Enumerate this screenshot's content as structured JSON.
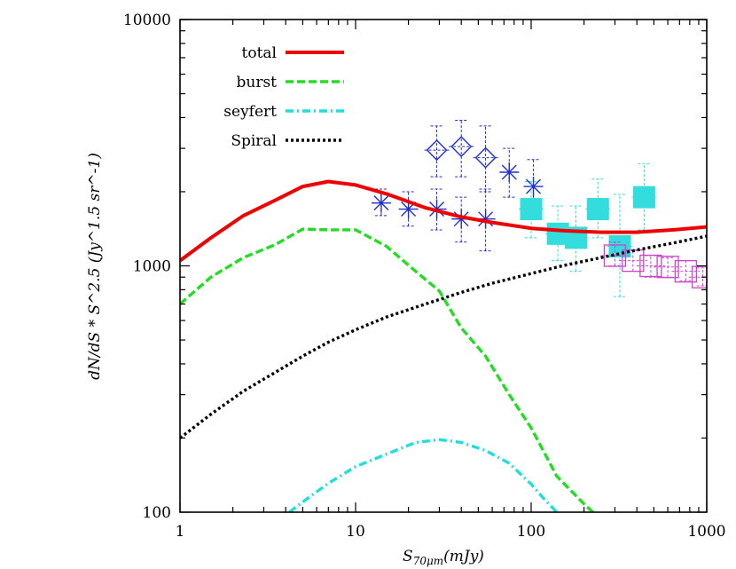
{
  "chart_data": {
    "type": "line",
    "xscale": "log",
    "yscale": "log",
    "xlim": [
      1,
      1000
    ],
    "ylim": [
      100,
      10000
    ],
    "xticks": [
      "1",
      "10",
      "100",
      "1000"
    ],
    "yticks": [
      "100",
      "1000",
      "10000"
    ],
    "xlabel": "S",
    "xlabel_sub": "70μm",
    "xlabel_unit": "(mJy)",
    "ylabel": "dN/dS * S^2.5 (Jy^1.5 sr^-1)",
    "grid": false,
    "legend_position": "top-left",
    "series": [
      {
        "name": "total",
        "color": "#ee0000",
        "style": "solid",
        "x": [
          1,
          1.5,
          2.3,
          3.5,
          5,
          7,
          10,
          15,
          25,
          40,
          60,
          100,
          150,
          250,
          400,
          650,
          1000
        ],
        "y": [
          1050,
          1300,
          1600,
          1850,
          2100,
          2200,
          2130,
          1960,
          1720,
          1580,
          1500,
          1420,
          1390,
          1370,
          1370,
          1400,
          1440
        ]
      },
      {
        "name": "burst",
        "color": "#22dd22",
        "style": "dashed",
        "x": [
          1,
          1.5,
          2.3,
          3.5,
          5,
          7,
          10,
          15,
          22,
          30,
          40,
          55,
          75,
          100,
          140,
          200,
          225
        ],
        "y": [
          700,
          900,
          1080,
          1220,
          1410,
          1400,
          1400,
          1200,
          950,
          790,
          560,
          430,
          300,
          220,
          140,
          108,
          100
        ]
      },
      {
        "name": "seyfert",
        "color": "#22dddd",
        "style": "dashdot",
        "x": [
          4.2,
          5,
          7,
          10,
          15,
          22,
          30,
          40,
          55,
          75,
          100,
          120,
          140
        ],
        "y": [
          100,
          110,
          131,
          153,
          172,
          192,
          197,
          192,
          178,
          158,
          130,
          112,
          100
        ]
      },
      {
        "name": "Spiral",
        "color": "#000000",
        "style": "dotted",
        "x": [
          1,
          1.5,
          2.3,
          3.5,
          5,
          7,
          10,
          15,
          25,
          40,
          60,
          100,
          150,
          250,
          400,
          650,
          1000
        ],
        "y": [
          200,
          250,
          310,
          370,
          430,
          490,
          550,
          620,
          700,
          780,
          850,
          930,
          1000,
          1080,
          1160,
          1240,
          1320
        ]
      }
    ],
    "observations": [
      {
        "marker": "asterisk",
        "color": "#1f2fcc",
        "points": [
          {
            "x": 14,
            "y": 1800,
            "ylo": 1600,
            "yhi": 2050
          },
          {
            "x": 20,
            "y": 1700,
            "ylo": 1450,
            "yhi": 2000
          },
          {
            "x": 29,
            "y": 1700,
            "ylo": 1400,
            "yhi": 2050
          },
          {
            "x": 40,
            "y": 1550,
            "ylo": 1250,
            "yhi": 1900
          },
          {
            "x": 55,
            "y": 1550,
            "ylo": 1150,
            "yhi": 2050
          },
          {
            "x": 75,
            "y": 2400,
            "ylo": 1900,
            "yhi": 3000
          },
          {
            "x": 103,
            "y": 2100,
            "ylo": 1600,
            "yhi": 2700
          }
        ]
      },
      {
        "marker": "diamond",
        "color": "#1f2fcc",
        "points": [
          {
            "x": 29,
            "y": 2950,
            "ylo": 2300,
            "yhi": 3700
          },
          {
            "x": 40,
            "y": 3050,
            "ylo": 2300,
            "yhi": 3900
          },
          {
            "x": 55,
            "y": 2750,
            "ylo": 2000,
            "yhi": 3700
          }
        ]
      },
      {
        "marker": "filled-square",
        "color": "#33dddd",
        "points": [
          {
            "x": 100,
            "y": 1700,
            "ylo": 1300,
            "yhi": 2200
          },
          {
            "x": 142,
            "y": 1350,
            "ylo": 1050,
            "yhi": 1750
          },
          {
            "x": 180,
            "y": 1300,
            "ylo": 950,
            "yhi": 1750
          },
          {
            "x": 240,
            "y": 1700,
            "ylo": 1300,
            "yhi": 2250
          },
          {
            "x": 320,
            "y": 1200,
            "ylo": 750,
            "yhi": 1950
          },
          {
            "x": 440,
            "y": 1900,
            "ylo": 1400,
            "yhi": 2600
          }
        ]
      },
      {
        "marker": "open-square",
        "color": "#cc44cc",
        "points": [
          {
            "x": 300,
            "y": 1100,
            "ylo": 1000,
            "yhi": 1250
          },
          {
            "x": 380,
            "y": 1050,
            "ylo": 950,
            "yhi": 1150
          },
          {
            "x": 480,
            "y": 1000,
            "ylo": 900,
            "yhi": 1100
          },
          {
            "x": 600,
            "y": 990,
            "ylo": 900,
            "yhi": 1080
          },
          {
            "x": 760,
            "y": 950,
            "ylo": 870,
            "yhi": 1050
          },
          {
            "x": 950,
            "y": 900,
            "ylo": 830,
            "yhi": 980
          }
        ]
      }
    ]
  }
}
